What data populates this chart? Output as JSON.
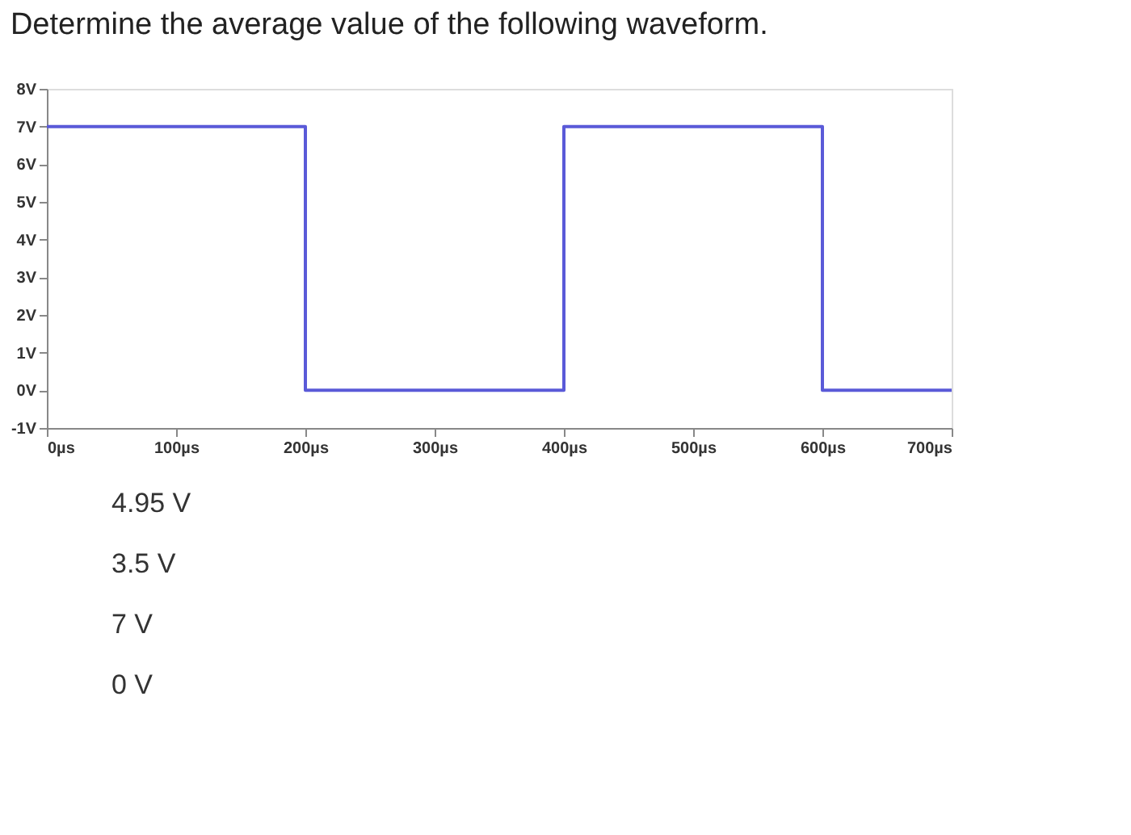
{
  "chart_data": {
    "type": "step",
    "title": "Determine the average value of the following waveform.",
    "x": [
      0,
      200,
      400,
      600,
      700
    ],
    "series": [
      {
        "color": "#5a5ad8",
        "values": [
          7,
          0,
          7,
          0,
          0
        ]
      }
    ],
    "xlim": [
      0,
      700
    ],
    "ylim": [
      -1,
      8
    ],
    "xticks": [
      {
        "value": 0,
        "label": "0µs"
      },
      {
        "value": 100,
        "label": "100µs"
      },
      {
        "value": 200,
        "label": "200µs"
      },
      {
        "value": 300,
        "label": "300µs"
      },
      {
        "value": 400,
        "label": "400µs"
      },
      {
        "value": 500,
        "label": "500µs"
      },
      {
        "value": 600,
        "label": "600µs"
      },
      {
        "value": 700,
        "label": "700µs"
      }
    ],
    "yticks": [
      {
        "value": -1,
        "label": "-1V"
      },
      {
        "value": 0,
        "label": "0V"
      },
      {
        "value": 1,
        "label": "1V"
      },
      {
        "value": 2,
        "label": "2V"
      },
      {
        "value": 3,
        "label": "3V"
      },
      {
        "value": 4,
        "label": "4V"
      },
      {
        "value": 5,
        "label": "5V"
      },
      {
        "value": 6,
        "label": "6V"
      },
      {
        "value": 7,
        "label": "7V"
      },
      {
        "value": 8,
        "label": "8V"
      }
    ],
    "grid": false,
    "annotations": [
      "4.95 V",
      "3.5 V",
      "7 V",
      "0 V"
    ]
  }
}
